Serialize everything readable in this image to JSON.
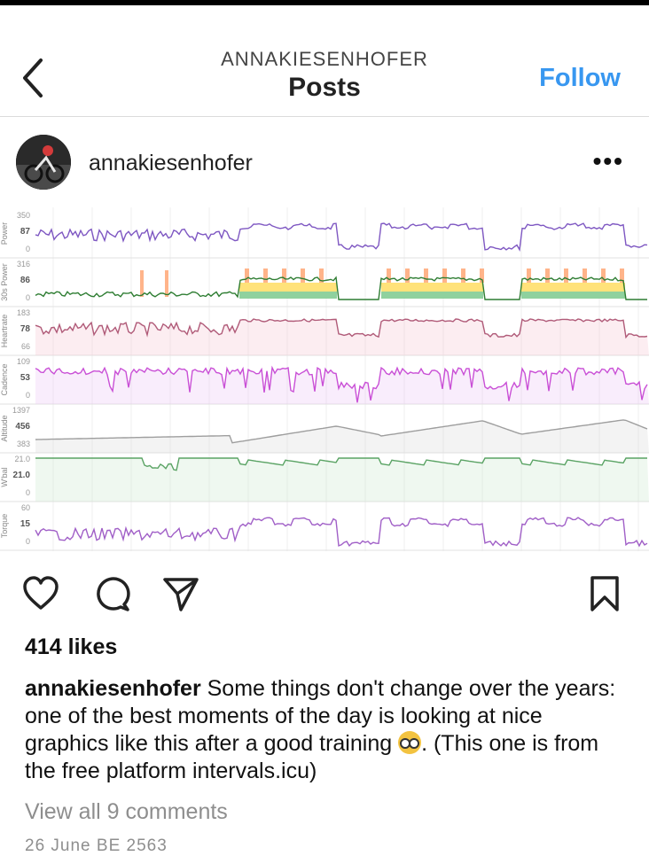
{
  "header": {
    "username": "ANNAKIESENHOFER",
    "title": "Posts",
    "follow_label": "Follow"
  },
  "post": {
    "author": "annakiesenhofer",
    "more_label": "•••",
    "chart_data": {
      "type": "line",
      "panels": [
        {
          "label": "Power",
          "ticks": [
            "350",
            "87",
            "0"
          ]
        },
        {
          "label": "30s Power",
          "ticks": [
            "316",
            "86",
            "0"
          ]
        },
        {
          "label": "Heartrate",
          "ticks": [
            "183",
            "78",
            "66"
          ]
        },
        {
          "label": "Cadence",
          "ticks": [
            "109",
            "53",
            "0"
          ]
        },
        {
          "label": "Altitude",
          "ticks": [
            "1397",
            "456",
            "383"
          ]
        },
        {
          "label": "W'bal",
          "ticks": [
            "21.0",
            "21.0",
            "0"
          ]
        },
        {
          "label": "Torque",
          "ticks": [
            "60",
            "15",
            "0"
          ]
        }
      ],
      "colors": {
        "power": "#7e57c2",
        "heartrate": "#b05a78",
        "cadence": "#c94fd6",
        "altitude": "#9e9e9e",
        "wbal": "#5aa364",
        "torque": "#a05fc7",
        "band_green": "#8fd19e",
        "band_yellow": "#ffe27a",
        "band_orange": "#ffb48a"
      }
    },
    "likes": "414 likes",
    "caption_user": "annakiesenhofer",
    "caption_text_1": " Some things don't change over the years: one of the best moments of the day is looking at nice graphics like this after a good training ",
    "caption_text_2": ". (This one is from the free platform intervals.icu)",
    "view_comments": "View all 9 comments",
    "date": "26 June BE 2563"
  }
}
